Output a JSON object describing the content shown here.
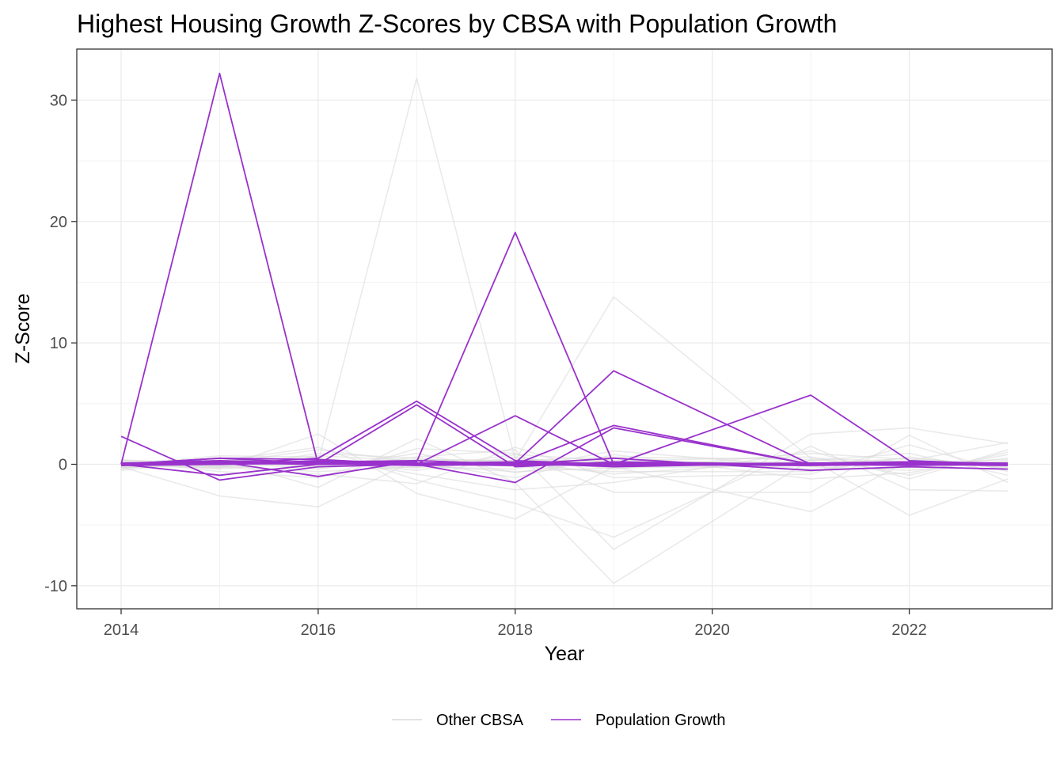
{
  "chart_data": {
    "type": "line",
    "title": "Highest Housing Growth Z-Scores by CBSA with Population Growth",
    "xlabel": "Year",
    "ylabel": "Z-Score",
    "xlim": [
      2013.55,
      2023.45
    ],
    "ylim": [
      -11.9,
      34.2
    ],
    "x_ticks": [
      2014,
      2016,
      2018,
      2020,
      2022
    ],
    "y_ticks": [
      -10,
      0,
      10,
      20,
      30
    ],
    "x_tick_labels": [
      "2014",
      "2016",
      "2018",
      "2020",
      "2022"
    ],
    "y_tick_labels": [
      "-10",
      "0",
      "10",
      "20",
      "30"
    ],
    "grid": true,
    "legend_position": "bottom",
    "legend": [
      {
        "label": "Other CBSA",
        "color": "#d9d9d9"
      },
      {
        "label": "Population Growth",
        "color": "#9932cc"
      }
    ],
    "x": [
      2014,
      2015,
      2016,
      2017,
      2018,
      2019,
      2021,
      2022,
      2023
    ],
    "series_groups": {
      "Other CBSA": [
        [
          0.0,
          0.3,
          0.2,
          31.8,
          0.4,
          0.2,
          0.1,
          0.2,
          0.1
        ],
        [
          -0.2,
          -2.6,
          -3.5,
          0.4,
          0.3,
          13.8,
          0.5,
          0.2,
          0.0
        ],
        [
          0.2,
          -0.3,
          2.5,
          -2.4,
          -4.5,
          -0.2,
          -3.9,
          0.3,
          1.8
        ],
        [
          -0.3,
          0.4,
          -1.9,
          2.1,
          -1.5,
          -9.8,
          0.4,
          -4.2,
          -1.2
        ],
        [
          0.1,
          0.2,
          -0.4,
          0.6,
          1.2,
          -7.0,
          2.5,
          3.0,
          1.7
        ],
        [
          -0.5,
          0.3,
          1.4,
          -1.3,
          -3.2,
          -6.0,
          1.5,
          -2.1,
          -2.2
        ],
        [
          0.3,
          -0.6,
          -1.1,
          1.3,
          0.9,
          -2.3,
          -2.3,
          2.4,
          -1.5
        ],
        [
          0.0,
          0.7,
          0.6,
          -0.8,
          -2.1,
          -1.5,
          1.1,
          -1.2,
          1.2
        ],
        [
          0.4,
          -0.2,
          -0.8,
          -1.6,
          1.4,
          -1.1,
          -0.8,
          1.6,
          -0.6
        ],
        [
          -0.1,
          0.1,
          1.2,
          0.2,
          -1.1,
          0.8,
          -1.2,
          -0.7,
          0.8
        ],
        [
          0.2,
          -0.4,
          0.3,
          -0.5,
          0.6,
          -0.4,
          0.9,
          0.4,
          -0.3
        ],
        [
          -0.4,
          0.5,
          -0.3,
          0.9,
          -0.7,
          0.5,
          -0.4,
          -0.3,
          0.5
        ],
        [
          0.1,
          0.0,
          0.7,
          0.3,
          0.2,
          -0.8,
          0.3,
          0.9,
          -0.9
        ],
        [
          -0.2,
          -0.1,
          -0.6,
          -0.2,
          -0.4,
          1.1,
          -0.2,
          -0.5,
          0.3
        ],
        [
          0.3,
          0.2,
          0.1,
          -0.3,
          0.8,
          0.3,
          0.6,
          -0.9,
          1.0
        ],
        [
          -0.1,
          -0.3,
          0.9,
          0.5,
          -0.2,
          -0.6,
          -0.6,
          0.6,
          -0.4
        ],
        [
          0.0,
          0.1,
          -0.2,
          0.1,
          0.1,
          0.2,
          0.2,
          -0.1,
          0.2
        ],
        [
          0.2,
          -0.2,
          0.4,
          -0.1,
          -0.6,
          -0.3,
          -0.1,
          0.2,
          -0.2
        ],
        [
          -0.3,
          0.3,
          -0.1,
          0.4,
          0.3,
          0.6,
          0.4,
          0.0,
          0.4
        ],
        [
          0.1,
          -0.1,
          0.2,
          0.0,
          -0.1,
          -0.1,
          0.0,
          0.5,
          -0.1
        ]
      ],
      "Population Growth": [
        [
          0.0,
          32.2,
          0.0,
          0.1,
          0.2,
          -0.1,
          0.0,
          0.1,
          0.0
        ],
        [
          0.1,
          0.3,
          0.1,
          0.2,
          19.1,
          0.0,
          0.1,
          0.2,
          0.0
        ],
        [
          2.3,
          -1.3,
          -0.2,
          0.0,
          0.1,
          7.7,
          0.0,
          -0.1,
          0.0
        ],
        [
          0.0,
          0.1,
          0.2,
          0.3,
          0.0,
          0.0,
          5.7,
          0.3,
          0.0
        ],
        [
          -0.1,
          0.0,
          0.5,
          5.2,
          0.3,
          0.0,
          0.0,
          0.2,
          0.1
        ],
        [
          0.0,
          -0.9,
          0.0,
          4.9,
          -0.2,
          0.2,
          0.0,
          0.1,
          0.0
        ],
        [
          0.0,
          0.5,
          0.1,
          0.0,
          4.0,
          0.0,
          0.0,
          0.0,
          0.0
        ],
        [
          0.0,
          0.5,
          0.4,
          0.0,
          0.0,
          3.2,
          0.0,
          0.0,
          0.0
        ],
        [
          0.0,
          0.0,
          0.3,
          0.0,
          -1.5,
          3.0,
          0.0,
          0.0,
          0.0
        ],
        [
          0.0,
          0.2,
          -1.0,
          0.3,
          0.0,
          0.5,
          -0.5,
          -0.2,
          -0.4
        ],
        [
          0.1,
          0.1,
          0.0,
          0.1,
          0.1,
          -0.2,
          0.1,
          0.0,
          -0.1
        ],
        [
          0.0,
          0.0,
          0.1,
          -0.1,
          0.0,
          0.1,
          0.0,
          0.1,
          0.0
        ],
        [
          -0.1,
          0.2,
          0.0,
          0.0,
          -0.1,
          0.0,
          -0.1,
          0.0,
          0.1
        ]
      ]
    }
  }
}
